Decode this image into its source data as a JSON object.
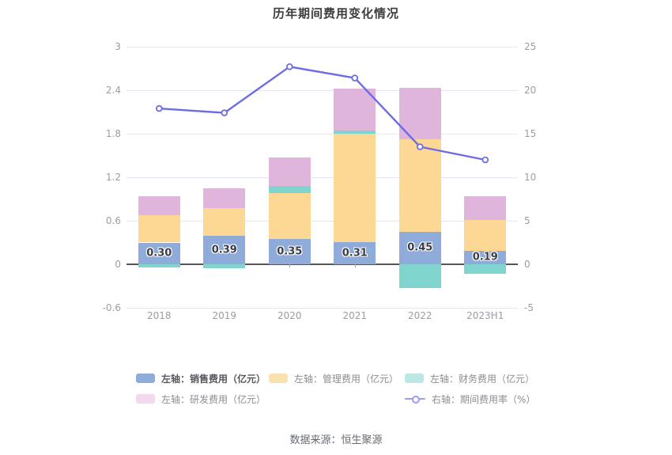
{
  "title": "历年期间费用变化情况",
  "footer": "数据来源：恒生聚源",
  "colors": {
    "sales_bar": "#8FABDA",
    "admin_bar": "#FCD894",
    "finance_bar": "#7FD5CE",
    "rnd_bar": "#DFB5DC",
    "ratio_line": "#6C6CE5",
    "grid": "#E4E8F4",
    "zero_axis": "#54565C",
    "axis_text": "#9A9DA4"
  },
  "legend": {
    "items": [
      {
        "label": "左轴：销售费用（亿元）",
        "type": "rect",
        "swatch": "#8FABDA",
        "emphasis": true
      },
      {
        "label": "左轴：管理费用（亿元）",
        "type": "rect",
        "swatch": "#FAE2B0",
        "emphasis": false
      },
      {
        "label": "左轴：财务费用（亿元）",
        "type": "rect",
        "swatch": "#BDE7E4",
        "emphasis": false
      },
      {
        "label": "左轴：研发费用（亿元）",
        "type": "rect",
        "swatch": "#F2D9EE",
        "emphasis": false
      },
      {
        "label": "右轴：期间费用率（%）",
        "type": "line",
        "swatch": "#9D9DF0",
        "emphasis": false
      }
    ]
  },
  "chart_data": {
    "type": "combo-stacked-bar-line",
    "title": "历年期间费用变化情况",
    "categories": [
      "2018",
      "2019",
      "2020",
      "2021",
      "2022",
      "2023H1"
    ],
    "left_axis": {
      "min": -0.6,
      "max": 3,
      "ticks": [
        {
          "label": "3",
          "value": 3
        },
        {
          "label": "2.4",
          "value": 2.4
        },
        {
          "label": "1.8",
          "value": 1.8
        },
        {
          "label": "1.2",
          "value": 1.2
        },
        {
          "label": "0.6",
          "value": 0.6
        },
        {
          "label": "0",
          "value": 0
        },
        {
          "label": "-0.6",
          "value": -0.6
        }
      ]
    },
    "right_axis": {
      "min": -5,
      "max": 25,
      "ticks": [
        {
          "label": "25",
          "value": 25
        },
        {
          "label": "20",
          "value": 20
        },
        {
          "label": "15",
          "value": 15
        },
        {
          "label": "10",
          "value": 10
        },
        {
          "label": "5",
          "value": 5
        },
        {
          "label": "0",
          "value": 0
        },
        {
          "label": "-5",
          "value": -5
        }
      ]
    },
    "series": [
      {
        "name": "左轴：销售费用（亿元）",
        "type": "bar",
        "stack": true,
        "color": "#8FABDA",
        "values": [
          0.3,
          0.39,
          0.35,
          0.31,
          0.45,
          0.19
        ],
        "labels": [
          "0.30",
          "0.39",
          "0.35",
          "0.31",
          "0.45",
          "0.19"
        ]
      },
      {
        "name": "左轴：管理费用（亿元）",
        "type": "bar",
        "stack": true,
        "color": "#FCD894",
        "values": [
          0.38,
          0.38,
          0.63,
          1.49,
          1.27,
          0.42
        ]
      },
      {
        "name": "左轴：财务费用（亿元）",
        "type": "bar",
        "stack": true,
        "color": "#7FD5CE",
        "values": [
          -0.04,
          -0.05,
          0.1,
          0.04,
          -0.33,
          -0.13
        ]
      },
      {
        "name": "左轴：研发费用（亿元）",
        "type": "bar",
        "stack": true,
        "color": "#DFB5DC",
        "values": [
          0.26,
          0.28,
          0.39,
          0.58,
          0.71,
          0.33
        ]
      },
      {
        "name": "右轴：期间费用率（%）",
        "type": "line",
        "axis": "right",
        "color": "#6C6CE5",
        "values": [
          17.9,
          17.4,
          22.7,
          21.4,
          13.5,
          12.0
        ]
      }
    ]
  }
}
